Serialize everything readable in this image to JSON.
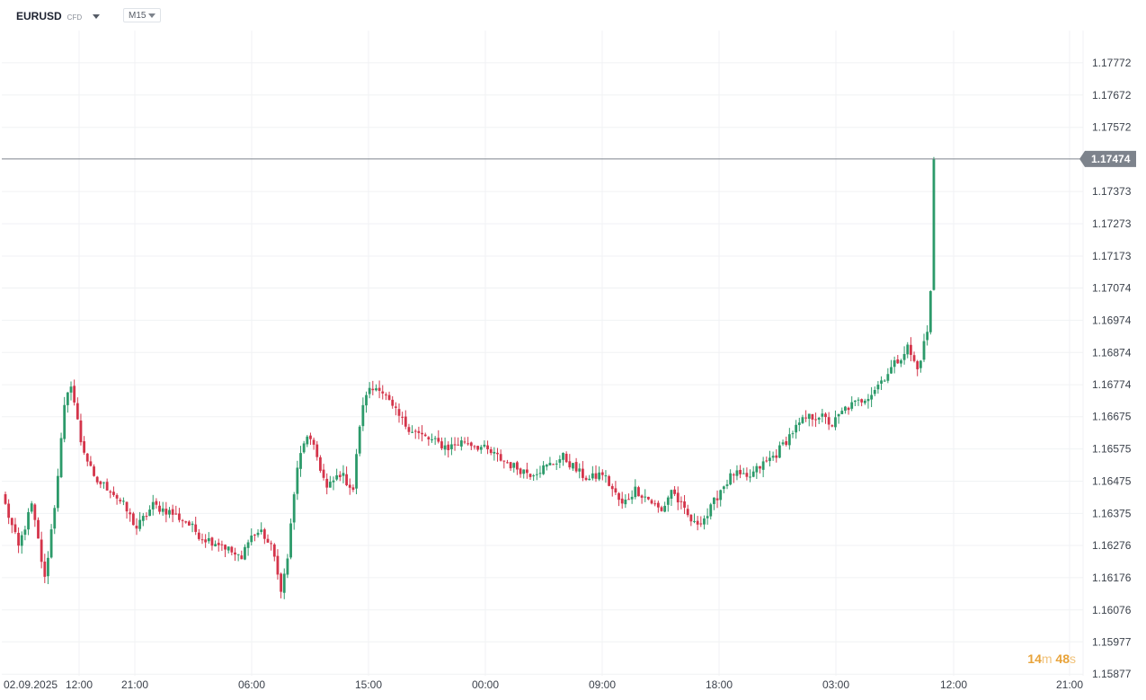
{
  "toolbar": {
    "symbol": "EURUSD",
    "symbol_type": "CFD",
    "timeframe": "M15"
  },
  "countdown": {
    "minutes": "14",
    "min_unit": "m",
    "seconds": "48",
    "sec_unit": "s"
  },
  "colors": {
    "up": "#2c9a6a",
    "down": "#d4344a",
    "price_line": "#7d838c",
    "grid": "#f0f2f4",
    "countdown": "#e8a33a"
  },
  "chart_data": {
    "type": "candlestick",
    "title": "",
    "instrument": "EURUSD",
    "timeframe": "M15",
    "current_price": 1.17474,
    "current_price_label": "1.17474",
    "y_ticks": [
      1.17772,
      1.17672,
      1.17572,
      1.17373,
      1.17273,
      1.17173,
      1.17074,
      1.16974,
      1.16874,
      1.16774,
      1.16675,
      1.16575,
      1.16475,
      1.16375,
      1.16276,
      1.16176,
      1.16076,
      1.15977,
      1.15877
    ],
    "x_ticks": [
      "02.09.2025",
      "12:00",
      "21:00",
      "06:00",
      "15:00",
      "00:00",
      "09:00",
      "18:00",
      "03:00",
      "12:00",
      "21:00"
    ],
    "ylim": [
      1.15872,
      1.17872
    ],
    "grid": true,
    "close_anchors": [
      [
        0,
        1.164
      ],
      [
        4,
        1.1627
      ],
      [
        8,
        1.164
      ],
      [
        10,
        1.1629
      ],
      [
        12,
        1.1617
      ],
      [
        15,
        1.164
      ],
      [
        18,
        1.167
      ],
      [
        20,
        1.1678
      ],
      [
        23,
        1.166
      ],
      [
        27,
        1.1648
      ],
      [
        32,
        1.1645
      ],
      [
        36,
        1.164
      ],
      [
        40,
        1.1633
      ],
      [
        45,
        1.164
      ],
      [
        50,
        1.1638
      ],
      [
        55,
        1.1635
      ],
      [
        60,
        1.163
      ],
      [
        66,
        1.1628
      ],
      [
        72,
        1.1623
      ],
      [
        74,
        1.163
      ],
      [
        78,
        1.1632
      ],
      [
        82,
        1.1625
      ],
      [
        84,
        1.1612
      ],
      [
        86,
        1.1625
      ],
      [
        89,
        1.1652
      ],
      [
        92,
        1.1662
      ],
      [
        95,
        1.1655
      ],
      [
        98,
        1.1645
      ],
      [
        102,
        1.165
      ],
      [
        106,
        1.1645
      ],
      [
        108,
        1.1665
      ],
      [
        110,
        1.1675
      ],
      [
        114,
        1.1677
      ],
      [
        118,
        1.167
      ],
      [
        122,
        1.1665
      ],
      [
        126,
        1.1662
      ],
      [
        130,
        1.166
      ],
      [
        135,
        1.1658
      ],
      [
        140,
        1.166
      ],
      [
        145,
        1.1658
      ],
      [
        150,
        1.1655
      ],
      [
        155,
        1.1652
      ],
      [
        160,
        1.165
      ],
      [
        165,
        1.1652
      ],
      [
        170,
        1.1655
      ],
      [
        175,
        1.165
      ],
      [
        178,
        1.1648
      ],
      [
        182,
        1.165
      ],
      [
        185,
        1.1645
      ],
      [
        188,
        1.164
      ],
      [
        192,
        1.1645
      ],
      [
        196,
        1.1642
      ],
      [
        200,
        1.1638
      ],
      [
        203,
        1.1645
      ],
      [
        207,
        1.1638
      ],
      [
        210,
        1.1634
      ],
      [
        214,
        1.1637
      ],
      [
        218,
        1.1645
      ],
      [
        222,
        1.165
      ],
      [
        226,
        1.1648
      ],
      [
        230,
        1.1652
      ],
      [
        235,
        1.1656
      ],
      [
        240,
        1.1663
      ],
      [
        244,
        1.1667
      ],
      [
        248,
        1.1668
      ],
      [
        252,
        1.1665
      ],
      [
        256,
        1.167
      ],
      [
        260,
        1.1672
      ],
      [
        264,
        1.1675
      ],
      [
        268,
        1.168
      ],
      [
        272,
        1.1685
      ],
      [
        275,
        1.1689
      ],
      [
        278,
        1.1682
      ],
      [
        280,
        1.169
      ],
      [
        281,
        1.1694
      ],
      [
        282,
        1.1706
      ],
      [
        283,
        1.1747
      ]
    ],
    "n_candles": 284
  }
}
